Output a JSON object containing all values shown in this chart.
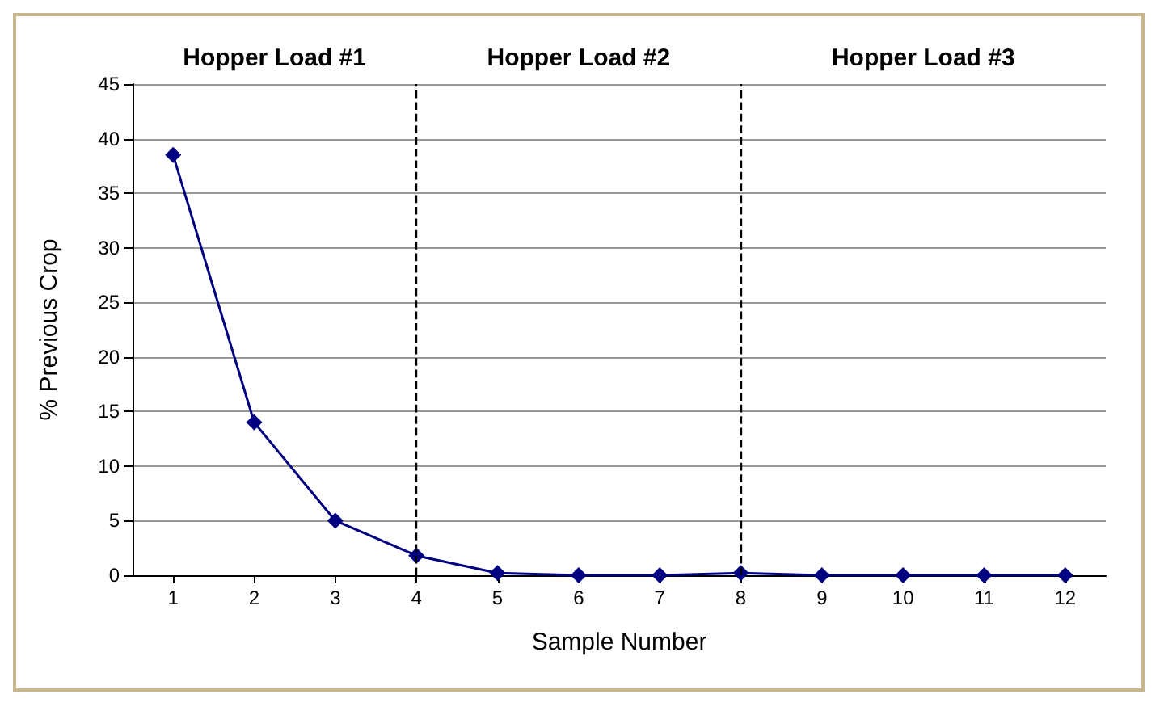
{
  "chart_data": {
    "type": "line",
    "xlabel": "Sample Number",
    "ylabel": "% Previous Crop",
    "x": [
      1,
      2,
      3,
      4,
      5,
      6,
      7,
      8,
      9,
      10,
      11,
      12
    ],
    "series": [
      {
        "color": "#000080",
        "values": [
          38.5,
          14,
          5,
          1.8,
          0.2,
          0,
          0,
          0.2,
          0,
          0,
          0,
          0
        ]
      }
    ],
    "xlim": [
      0.5,
      12.5
    ],
    "xticks": [
      1,
      2,
      3,
      4,
      5,
      6,
      7,
      8,
      9,
      10,
      11,
      12
    ],
    "ylim": [
      0,
      45
    ],
    "yticks": [
      0,
      5,
      10,
      15,
      20,
      25,
      30,
      35,
      40,
      45
    ],
    "grid": "y",
    "marker": "diamond",
    "line_style": "solid",
    "ref_lines": [
      {
        "axis": "x",
        "value": 4,
        "color": "#000000",
        "line_style": "dashed"
      },
      {
        "axis": "x",
        "value": 8,
        "color": "#000000",
        "line_style": "dashed"
      }
    ],
    "annotations": [
      "Hopper Load #1",
      "Hopper Load #2",
      "Hopper Load #3"
    ]
  }
}
